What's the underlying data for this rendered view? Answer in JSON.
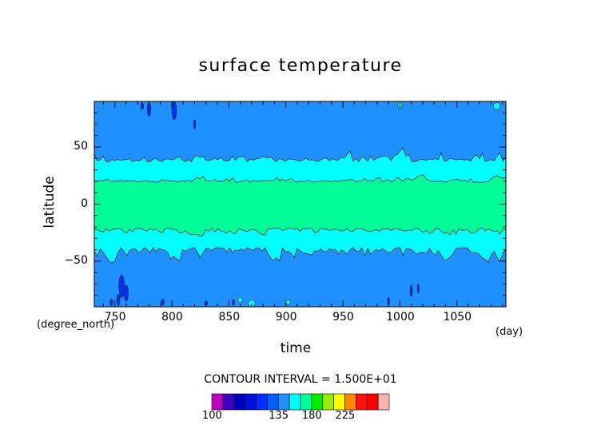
{
  "chart_data": {
    "type": "heatmap",
    "title": "surface temperature",
    "xlabel": "time",
    "ylabel": "latitude",
    "x_unit_label": "(day)",
    "y_unit_label": "(degree_north)",
    "xlim": [
      732,
      1093
    ],
    "ylim": [
      -90,
      90
    ],
    "x_ticks": [
      750,
      800,
      850,
      900,
      950,
      1000,
      1050
    ],
    "y_ticks": [
      50,
      0,
      -50
    ],
    "y_tick_labels": [
      "50",
      "0",
      "−50"
    ],
    "grid": false,
    "contour_interval_label": "CONTOUR INTERVAL = 1.500E+01",
    "contour_levels": [
      100,
      105,
      110,
      115,
      120,
      125,
      135,
      150,
      165,
      180,
      195,
      210,
      225,
      240,
      255
    ],
    "colorbar_colors": [
      "#c000c0",
      "#4000c0",
      "#0000c0",
      "#0010e0",
      "#0030ff",
      "#0060ff",
      "#1e90ff",
      "#00ffff",
      "#00ff99",
      "#00ee00",
      "#99ee00",
      "#ffff00",
      "#ff8800",
      "#ff1010",
      "#ff0000",
      "#ffb0b0"
    ],
    "colorbar_tick_labels": [
      "100",
      "135",
      "180",
      "225"
    ],
    "colorbar_tick_values": [
      100,
      135,
      180,
      225
    ],
    "bands": [
      {
        "range": "135-150",
        "color": "#1e90ff",
        "lat_extent": [
          -90,
          90
        ]
      },
      {
        "range": "150-165",
        "color": "#00ffff",
        "lat_extent": [
          -38,
          37
        ]
      },
      {
        "range": "165-180",
        "color": "#00ff99",
        "lat_extent": [
          -21,
          19
        ]
      }
    ]
  }
}
